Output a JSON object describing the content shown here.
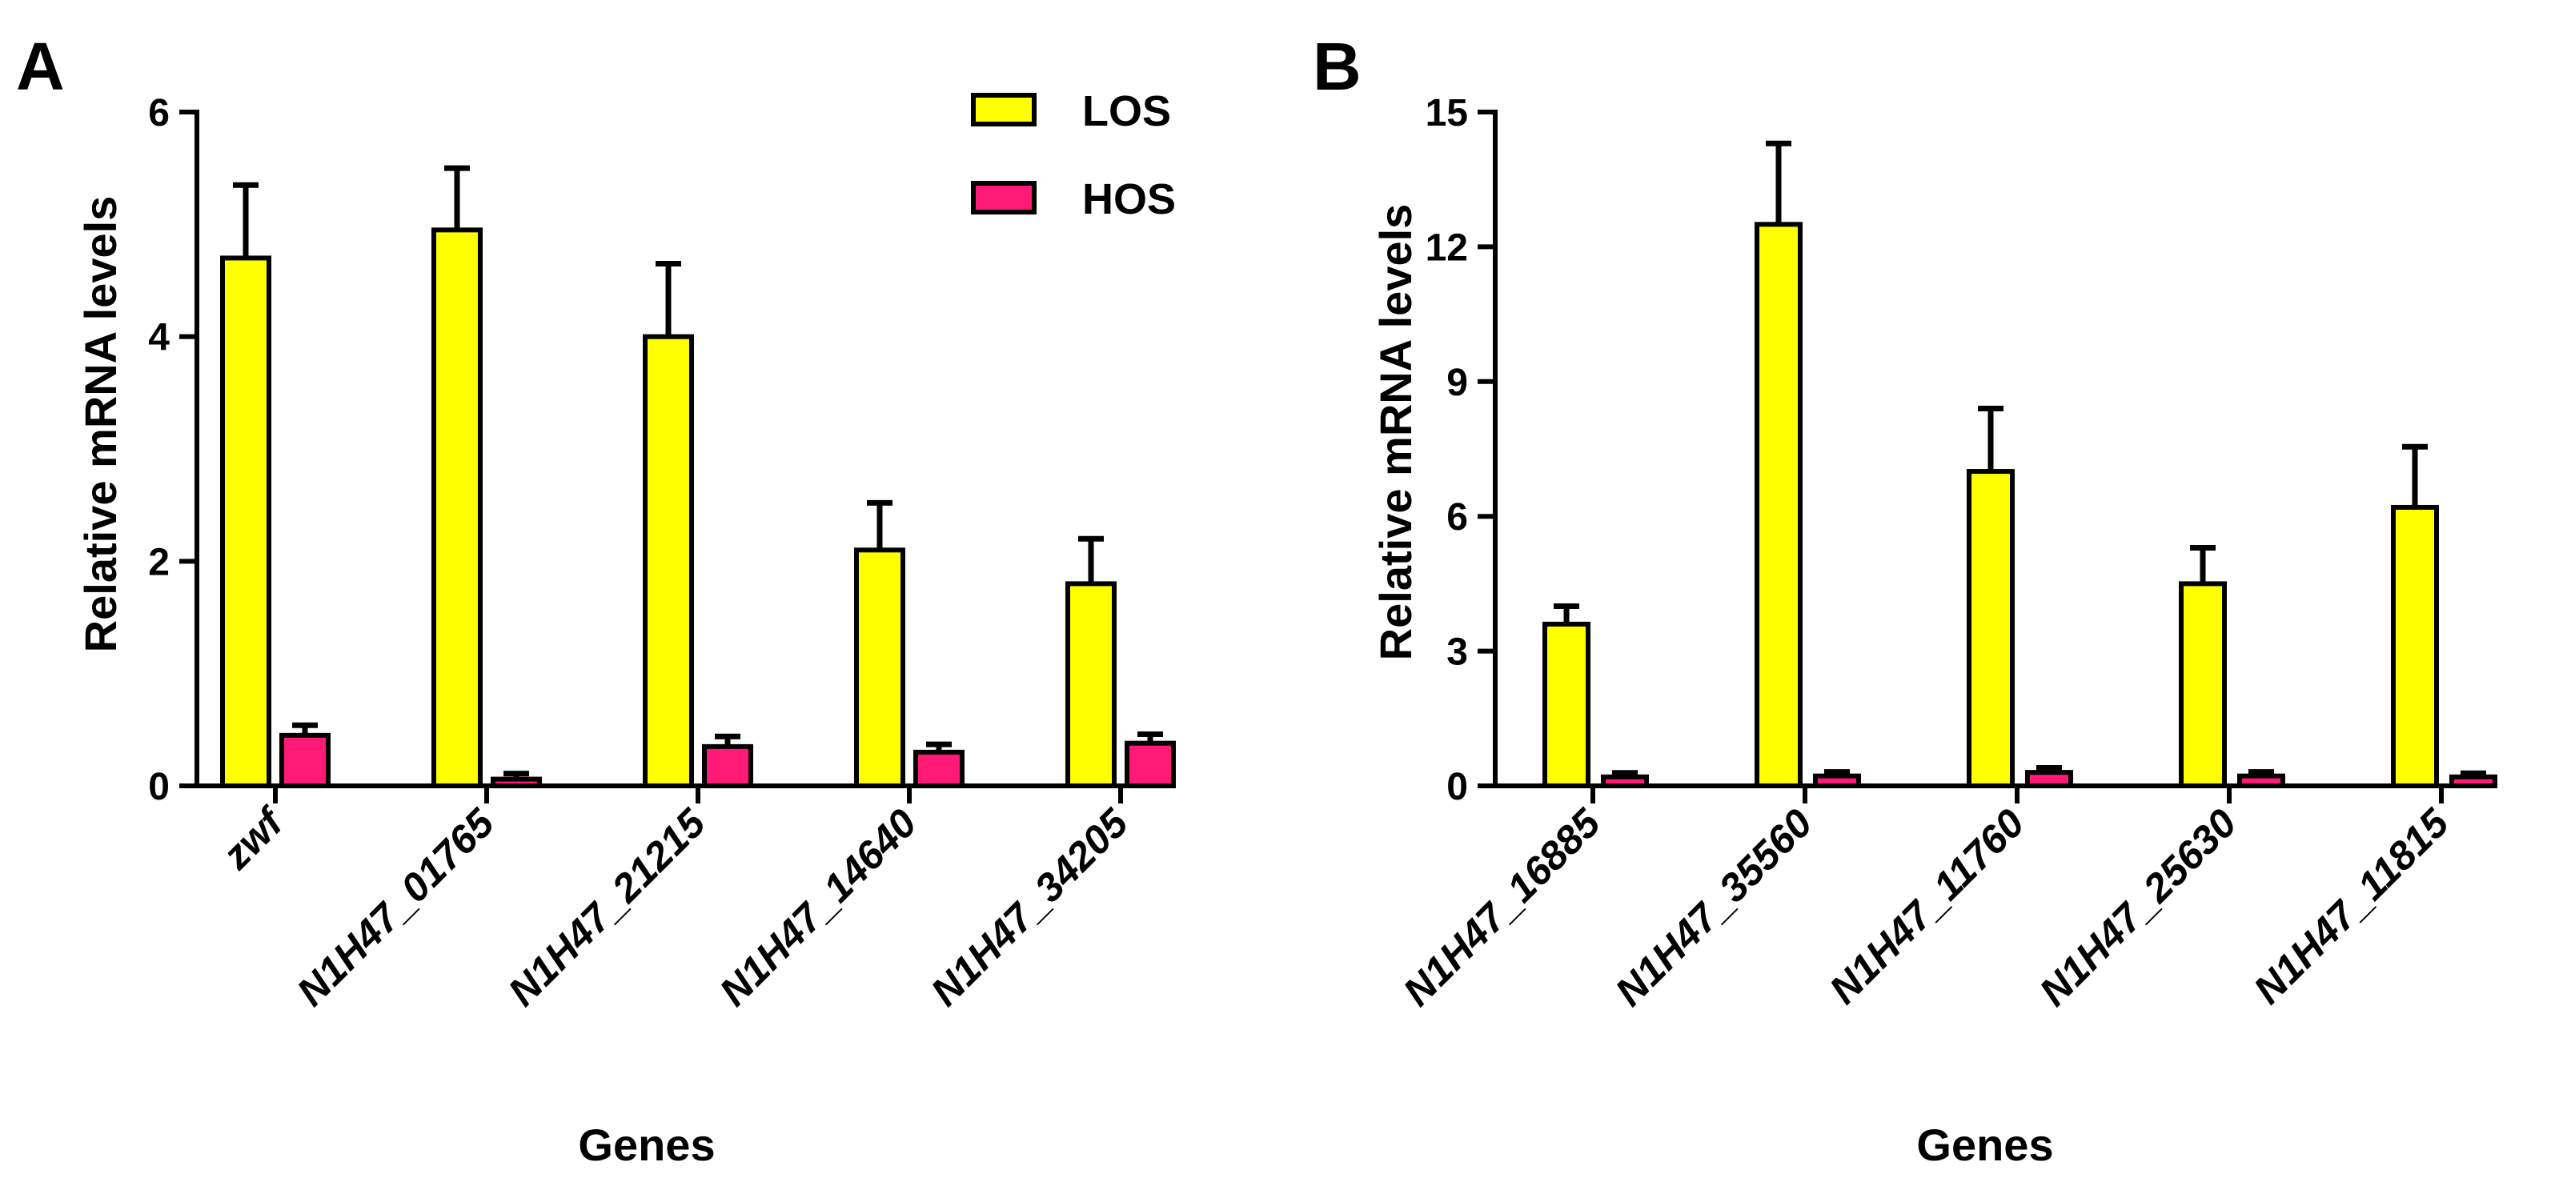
{
  "colors": {
    "LOS": "#ffff00",
    "HOS": "#ff1a75",
    "stroke": "#000000",
    "background": "#ffffff"
  },
  "chart_data": [
    {
      "panel": "A",
      "type": "bar",
      "xlabel": "Genes",
      "ylabel": "Relative mRNA levels",
      "ylim": [
        0,
        6
      ],
      "yticks": [
        "0",
        "2",
        "4",
        "6"
      ],
      "tick_values": [
        0,
        2,
        4,
        6
      ],
      "categories": [
        "zwf",
        "N1H47_01765",
        "N1H47_21215",
        "N1H47_14640",
        "N1H47_34205"
      ],
      "legend": [
        "LOS",
        "HOS"
      ],
      "legend_position": "top-right",
      "series": [
        {
          "name": "LOS",
          "values": [
            4.7,
            4.95,
            4.0,
            2.1,
            1.8
          ],
          "errors": [
            0.65,
            0.55,
            0.65,
            0.42,
            0.4
          ]
        },
        {
          "name": "HOS",
          "values": [
            0.45,
            0.06,
            0.35,
            0.3,
            0.38
          ],
          "errors": [
            0.09,
            0.05,
            0.09,
            0.07,
            0.08
          ]
        }
      ]
    },
    {
      "panel": "B",
      "type": "bar",
      "xlabel": "Genes",
      "ylabel": "Relative mRNA levels",
      "ylim": [
        0,
        15
      ],
      "yticks": [
        "0",
        "3",
        "6",
        "9",
        "12",
        "15"
      ],
      "tick_values": [
        0,
        3,
        6,
        9,
        12,
        15
      ],
      "categories": [
        "N1H47_16885",
        "N1H47_35560",
        "N1H47_11760",
        "N1H47_25630",
        "N1H47_11815"
      ],
      "series": [
        {
          "name": "LOS",
          "values": [
            3.6,
            12.5,
            7.0,
            4.5,
            6.2
          ],
          "errors": [
            0.4,
            1.8,
            1.4,
            0.8,
            1.35
          ]
        },
        {
          "name": "HOS",
          "values": [
            0.2,
            0.22,
            0.3,
            0.22,
            0.2
          ],
          "errors": [
            0.09,
            0.09,
            0.1,
            0.09,
            0.08
          ]
        }
      ]
    }
  ]
}
